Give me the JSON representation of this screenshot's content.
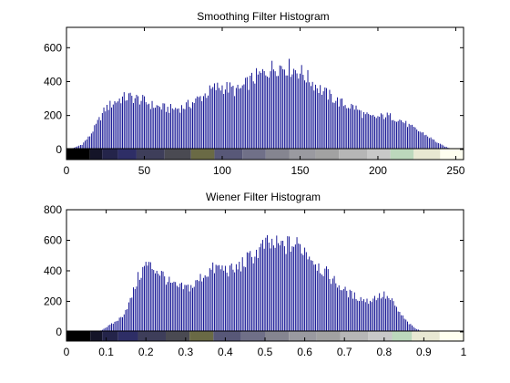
{
  "chart_data": [
    {
      "type": "bar",
      "title": "Smoothing Filter Histogram",
      "xlim": [
        0,
        255
      ],
      "ylim": [
        -60,
        720
      ],
      "xticks": [
        "0",
        "50",
        "100",
        "150",
        "200",
        "250"
      ],
      "yticks": [
        "0",
        "200",
        "400",
        "600"
      ],
      "bar_color": "#00008b",
      "histogram_profile": {
        "x": [
          0,
          5,
          10,
          15,
          20,
          25,
          30,
          35,
          40,
          45,
          50,
          55,
          60,
          65,
          70,
          75,
          80,
          85,
          90,
          95,
          100,
          105,
          110,
          115,
          120,
          125,
          130,
          135,
          140,
          145,
          150,
          155,
          160,
          165,
          170,
          175,
          180,
          185,
          190,
          195,
          200,
          205,
          210,
          215,
          220,
          225,
          230,
          235,
          240,
          245,
          250,
          255
        ],
        "y": [
          0,
          10,
          30,
          80,
          160,
          240,
          275,
          300,
          310,
          300,
          285,
          260,
          250,
          240,
          240,
          250,
          270,
          300,
          330,
          360,
          370,
          360,
          345,
          380,
          420,
          440,
          470,
          490,
          490,
          475,
          460,
          420,
          380,
          340,
          310,
          280,
          260,
          250,
          210,
          190,
          190,
          200,
          190,
          170,
          140,
          115,
          90,
          60,
          30,
          10,
          2,
          0
        ]
      },
      "colorbar": [
        "#000000",
        "#141428",
        "#24244a",
        "#2e2e66",
        "#3e3e5a",
        "#4a4a52",
        "#6a6a45",
        "#585878",
        "#707088",
        "#858590",
        "#9a9aa0",
        "#a2a2a2",
        "#b6b6b6",
        "#c8c8c8",
        "#bcd8bc",
        "#e8e8d2",
        "#fffff0"
      ],
      "colorbar_edges": [
        0,
        15,
        23,
        33,
        45,
        63,
        80,
        95,
        113,
        128,
        143,
        160,
        175,
        193,
        208,
        223,
        240,
        255
      ],
      "xtick_values": [
        0,
        50,
        100,
        150,
        200,
        250
      ],
      "ytick_values": [
        0,
        200,
        400,
        600
      ]
    },
    {
      "type": "bar",
      "title": "Wiener Filter Histogram",
      "xlim": [
        0,
        1
      ],
      "ylim": [
        -60,
        800
      ],
      "xticks": [
        "0",
        "0.1",
        "0.2",
        "0.3",
        "0.4",
        "0.5",
        "0.6",
        "0.7",
        "0.8",
        "0.9",
        "1"
      ],
      "yticks": [
        "0",
        "200",
        "400",
        "600",
        "800"
      ],
      "bar_color": "#00008b",
      "histogram_profile": {
        "x": [
          0.0,
          0.08,
          0.1,
          0.12,
          0.14,
          0.16,
          0.18,
          0.2,
          0.22,
          0.24,
          0.26,
          0.28,
          0.3,
          0.32,
          0.34,
          0.36,
          0.38,
          0.4,
          0.42,
          0.44,
          0.46,
          0.48,
          0.5,
          0.52,
          0.54,
          0.56,
          0.58,
          0.6,
          0.62,
          0.64,
          0.66,
          0.68,
          0.7,
          0.72,
          0.74,
          0.76,
          0.78,
          0.8,
          0.82,
          0.84,
          0.86,
          0.88,
          0.9,
          1.0
        ],
        "y": [
          0,
          0,
          30,
          60,
          100,
          200,
          350,
          440,
          420,
          380,
          320,
          290,
          290,
          300,
          360,
          400,
          420,
          410,
          400,
          440,
          480,
          520,
          570,
          570,
          560,
          570,
          570,
          540,
          480,
          420,
          370,
          320,
          270,
          240,
          220,
          200,
          230,
          240,
          200,
          120,
          60,
          20,
          0,
          0
        ]
      },
      "colorbar": [
        "#000000",
        "#141428",
        "#24244a",
        "#2e2e66",
        "#3e3e5a",
        "#4a4a52",
        "#6a6a45",
        "#585878",
        "#707088",
        "#858590",
        "#9a9aa0",
        "#a2a2a2",
        "#b6b6b6",
        "#c8c8c8",
        "#bcd8bc",
        "#e8e8d2",
        "#fffff0"
      ],
      "colorbar_edges": [
        0,
        0.06,
        0.09,
        0.13,
        0.18,
        0.25,
        0.31,
        0.37,
        0.44,
        0.5,
        0.56,
        0.63,
        0.69,
        0.76,
        0.82,
        0.87,
        0.94,
        1.0
      ],
      "xtick_values": [
        0,
        0.1,
        0.2,
        0.3,
        0.4,
        0.5,
        0.6,
        0.7,
        0.8,
        0.9,
        1
      ],
      "ytick_values": [
        0,
        200,
        400,
        600,
        800
      ]
    }
  ]
}
